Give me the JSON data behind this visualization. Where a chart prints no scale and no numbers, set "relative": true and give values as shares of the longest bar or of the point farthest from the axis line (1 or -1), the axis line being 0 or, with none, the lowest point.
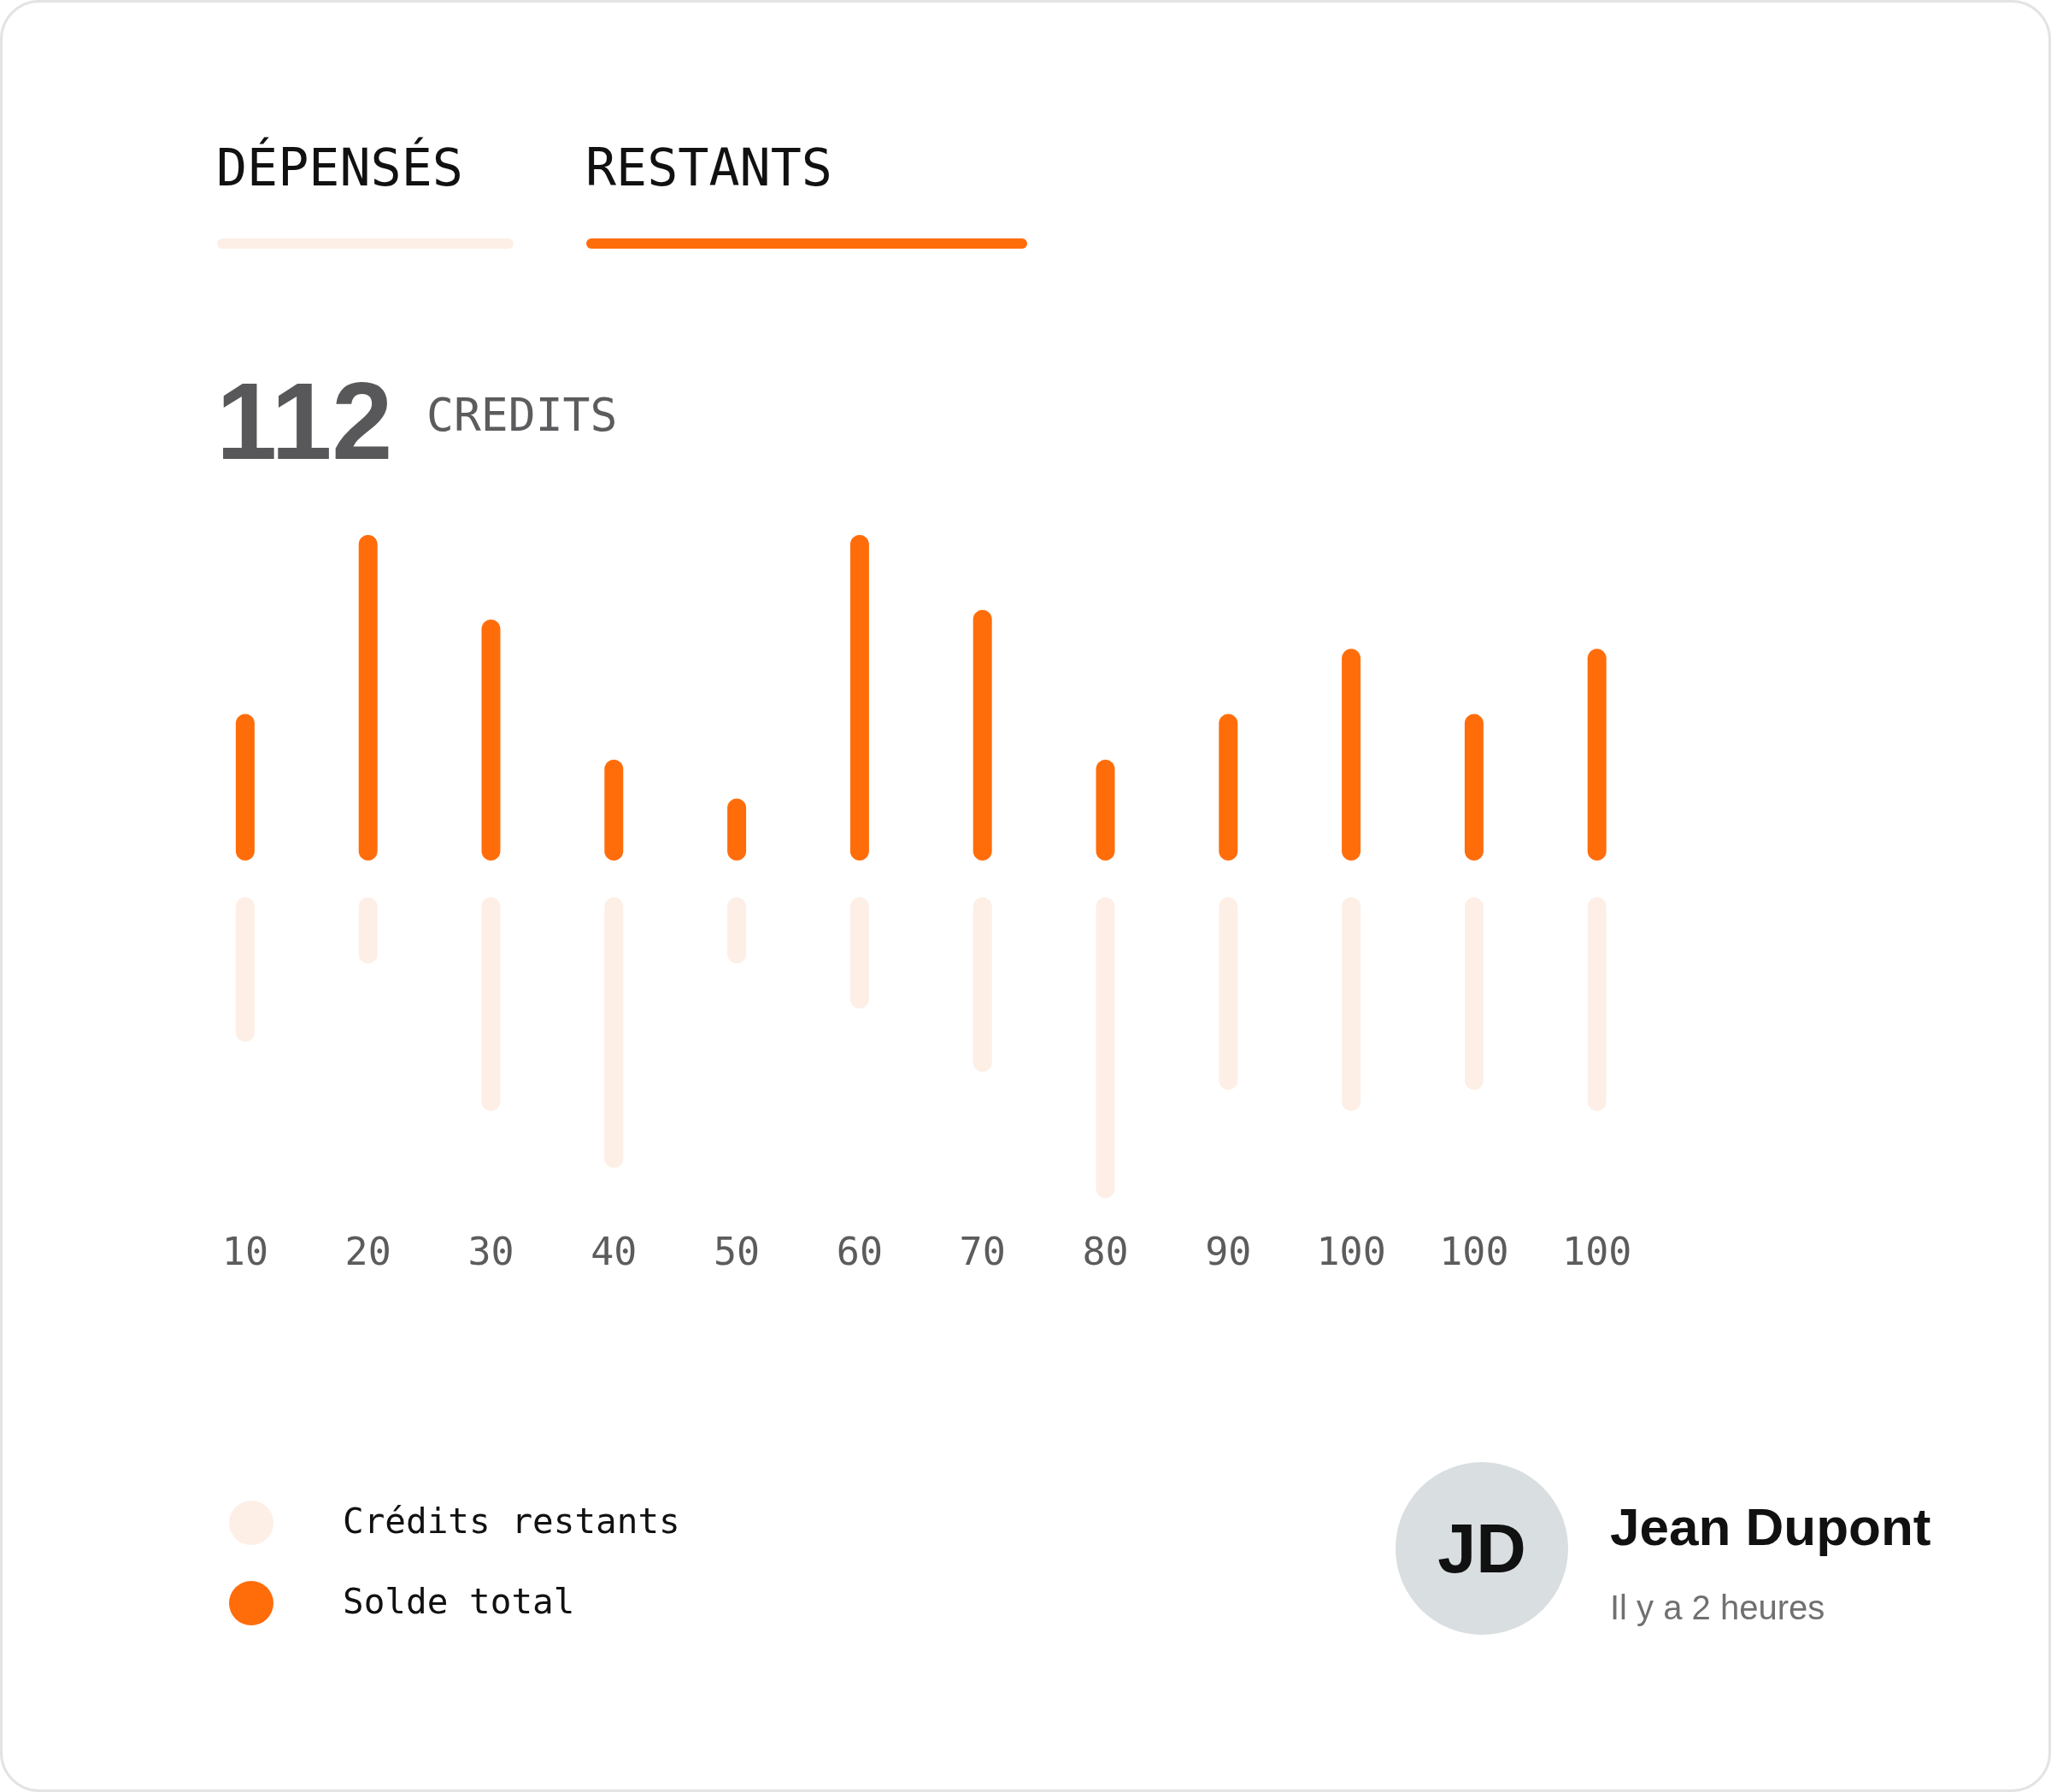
{
  "chart_data": [
    {
      "type": "bar",
      "title": "112",
      "subtitle": "CREDITS",
      "categories": [
        "10",
        "20",
        "30",
        "40",
        "50",
        "60",
        "70",
        "80",
        "90",
        "100",
        "100",
        "100"
      ],
      "series": [
        {
          "name": "Solde total",
          "color": "#ff6d0b",
          "values": [
            0.45,
            1,
            0.74,
            0.31,
            0.19,
            1,
            0.77,
            0.31,
            0.45,
            0.65,
            0.45,
            0.65
          ]
        }
      ],
      "relative": true,
      "tick_labels": false,
      "legend": "bottom left",
      "annotations": [
        "DÉPENSÉS",
        "RESTANTS",
        "JD",
        "Jean Dupont",
        "Il y a 2 heures"
      ]
    },
    {
      "type": "bar",
      "categories": [
        "10",
        "20",
        "30",
        "40",
        "50",
        "60",
        "70",
        "80",
        "90",
        "100",
        "100",
        "100"
      ],
      "series": [
        {
          "name": "Crédits restants",
          "color": "#fdefe6",
          "values": [
            -0.48,
            -0.22,
            -0.71,
            -0.9,
            -0.22,
            -0.37,
            -0.58,
            -1,
            -0.64,
            -0.71,
            -0.64,
            -0.71
          ]
        }
      ],
      "relative": true,
      "legend": "bottom left"
    }
  ]
}
